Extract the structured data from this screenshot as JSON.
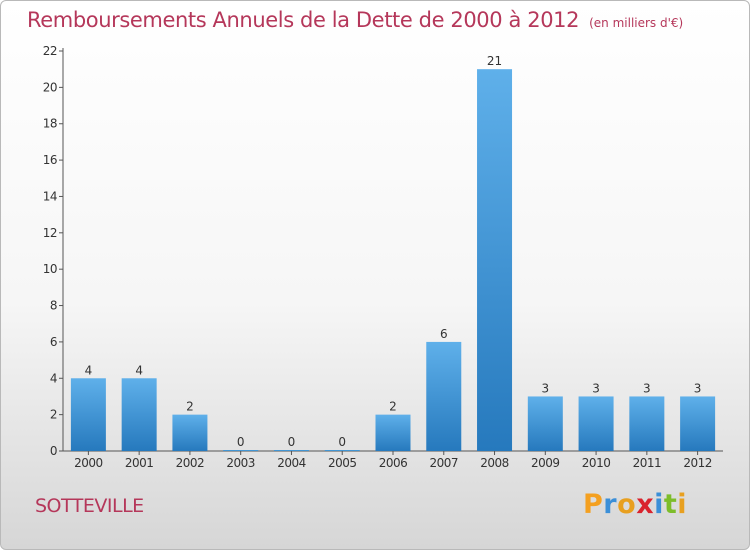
{
  "title": {
    "main": "Remboursements Annuels de la Dette de 2000 à 2012",
    "unit": "(en milliers d'€)"
  },
  "commune": "SOTTEVILLE",
  "logo": {
    "text": "Proxiti",
    "letters": [
      "P",
      "r",
      "o",
      "x",
      "i",
      "t",
      "i"
    ],
    "letter_colors": [
      "#f4a020",
      "#3b8fd8",
      "#e8a020",
      "#d9232d",
      "#3b8fd8",
      "#7dbd2a",
      "#e8a020"
    ]
  },
  "chart_data": {
    "type": "bar",
    "categories": [
      "2000",
      "2001",
      "2002",
      "2003",
      "2004",
      "2005",
      "2006",
      "2007",
      "2008",
      "2009",
      "2010",
      "2011",
      "2012"
    ],
    "values": [
      4,
      4,
      2,
      0,
      0,
      0,
      2,
      6,
      21,
      3,
      3,
      3,
      3
    ],
    "data_labels": [
      "4",
      "4",
      "2",
      "0",
      "0",
      "0",
      "2",
      "6",
      "21",
      "3",
      "3",
      "3",
      "3"
    ],
    "ylim": [
      0,
      22
    ],
    "yticks": [
      0,
      2,
      4,
      6,
      8,
      10,
      12,
      14,
      16,
      18,
      20,
      22
    ],
    "grid": false,
    "bar_color": "#3a93d8",
    "xlabel": "",
    "ylabel": ""
  }
}
